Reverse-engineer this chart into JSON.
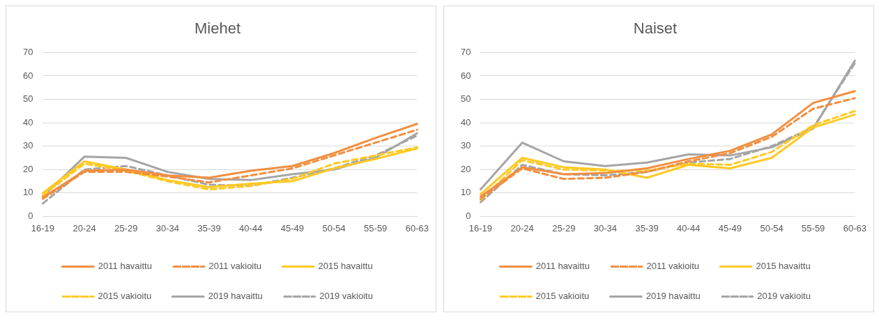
{
  "chart_data": [
    {
      "type": "line",
      "title": "Miehet",
      "categories": [
        "16-19",
        "20-24",
        "25-29",
        "30-34",
        "35-39",
        "40-44",
        "45-49",
        "50-54",
        "55-59",
        "60-63"
      ],
      "ylim": [
        0,
        70
      ],
      "yticks": [
        0,
        10,
        20,
        30,
        40,
        50,
        60,
        70
      ],
      "grid": "y",
      "legend": "bottom",
      "marker": "none",
      "series": [
        {
          "name": "2011 havaittu",
          "color": "#f28e3f",
          "line_style": "solid",
          "values": [
            8,
            19.5,
            20,
            17.5,
            16.5,
            19.5,
            21.5,
            27,
            33.5,
            39.5
          ]
        },
        {
          "name": "2011 vakioitu",
          "color": "#f28e3f",
          "line_style": "dashed",
          "values": [
            7.5,
            19,
            19,
            17,
            14.5,
            17.5,
            20.5,
            26,
            31.5,
            37
          ]
        },
        {
          "name": "2015 havaittu",
          "color": "#ffc922",
          "line_style": "solid",
          "values": [
            10,
            23.5,
            20,
            15.5,
            12.5,
            14,
            15,
            20.5,
            24.5,
            29
          ]
        },
        {
          "name": "2015 vakioitu",
          "color": "#ffc922",
          "line_style": "dashed",
          "values": [
            9,
            22.5,
            19.5,
            15,
            11.5,
            13,
            16,
            22.5,
            26,
            29.5
          ]
        },
        {
          "name": "2019 havaittu",
          "color": "#a5a5a5",
          "line_style": "solid",
          "values": [
            8.5,
            25.5,
            25,
            19,
            16,
            15.5,
            18,
            20,
            25,
            35.5
          ]
        },
        {
          "name": "2019 vakioitu",
          "color": "#a5a5a5",
          "line_style": "dashed",
          "values": [
            5.5,
            20,
            21.5,
            17.5,
            13.5,
            13,
            16.5,
            20.5,
            26,
            34.5
          ]
        }
      ]
    },
    {
      "type": "line",
      "title": "Naiset",
      "categories": [
        "16-19",
        "20-24",
        "25-29",
        "30-34",
        "35-39",
        "40-44",
        "45-49",
        "50-54",
        "55-59",
        "60-63"
      ],
      "ylim": [
        0,
        70
      ],
      "yticks": [
        0,
        10,
        20,
        30,
        40,
        50,
        60,
        70
      ],
      "grid": "y",
      "legend": "bottom",
      "marker": "none",
      "series": [
        {
          "name": "2011 havaittu",
          "color": "#f28e3f",
          "line_style": "solid",
          "values": [
            8.5,
            21,
            18,
            18.5,
            20.5,
            24.5,
            28,
            35,
            48.5,
            53.5
          ]
        },
        {
          "name": "2011 vakioitu",
          "color": "#f28e3f",
          "line_style": "dashed",
          "values": [
            7.5,
            20.5,
            16,
            16.5,
            19,
            23.5,
            27,
            34,
            46,
            50.5
          ]
        },
        {
          "name": "2015 havaittu",
          "color": "#ffc922",
          "line_style": "solid",
          "values": [
            9.5,
            25,
            21,
            20,
            16.5,
            22,
            20.5,
            25,
            38,
            43.5
          ]
        },
        {
          "name": "2015 vakioitu",
          "color": "#ffc922",
          "line_style": "dashed",
          "values": [
            7,
            24,
            20,
            19.5,
            19.5,
            22.5,
            22,
            27.5,
            39,
            45
          ]
        },
        {
          "name": "2019 havaittu",
          "color": "#a5a5a5",
          "line_style": "solid",
          "values": [
            11.5,
            31.5,
            23.5,
            21.5,
            23,
            26.5,
            26,
            29.5,
            37.5,
            66.5
          ]
        },
        {
          "name": "2019 vakioitu",
          "color": "#a5a5a5",
          "line_style": "dashed",
          "values": [
            6,
            22,
            18,
            17.5,
            19,
            23,
            24.5,
            30,
            38,
            65.5
          ]
        }
      ]
    }
  ]
}
